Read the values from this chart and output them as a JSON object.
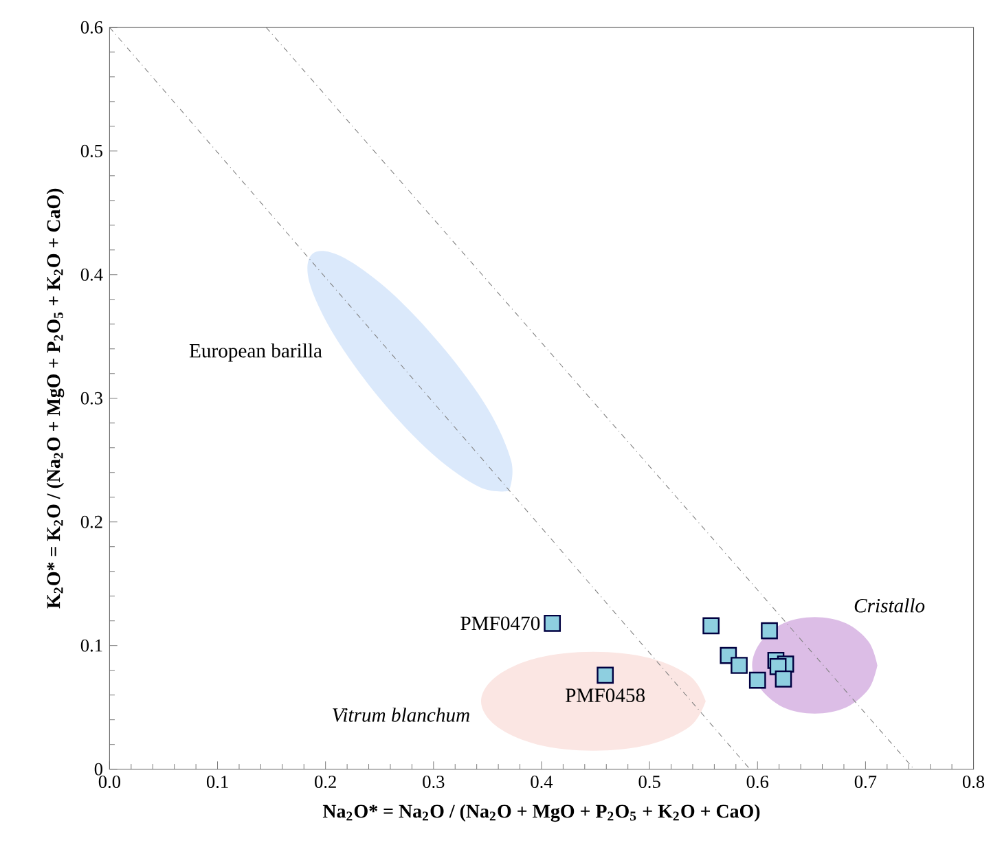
{
  "chart_data": {
    "type": "scatter",
    "xlabel": "**Na$_{2}$O* = Na$_{2}$O / (Na$_{2}$O + MgO + P$_{2}$O$_{5}$ + K$_{2}$O + CaO)**",
    "ylabel": "**K$_{2}$O* = K$_{2}$O / (Na$_{2}$O + MgO + P$_{2}$O$_{5}$ + K$_{2}$O + CaO)**",
    "xlim": [
      0,
      0.8
    ],
    "ylim": [
      0,
      0.6
    ],
    "xticks": [
      {
        "value": 0,
        "label": "0.0"
      },
      0.1,
      0.2,
      0.3,
      0.4,
      0.5,
      0.6,
      0.7,
      0.8
    ],
    "yticks": [
      0,
      0.1,
      0.2,
      0.3,
      0.4,
      0.5,
      0.6
    ],
    "grid": false,
    "series": [
      {
        "type": "area",
        "name": "European barilla",
        "color": "#dbe9fb",
        "x": [
          0.37,
          0.372,
          0.35,
          0.308,
          0.259,
          0.214,
          0.188,
          0.185,
          0.208,
          0.25,
          0.299,
          0.343
        ],
        "values": [
          0.225,
          0.249,
          0.292,
          0.342,
          0.387,
          0.415,
          0.417,
          0.394,
          0.351,
          0.3,
          0.255,
          0.228
        ]
      },
      {
        "type": "area",
        "name": "Vitrum blanchum",
        "color": "#fbe6e3",
        "x": [
          0.552,
          0.538,
          0.5,
          0.448,
          0.396,
          0.358,
          0.344,
          0.358,
          0.396,
          0.448,
          0.5,
          0.538
        ],
        "values": [
          0.055,
          0.075,
          0.09,
          0.095,
          0.09,
          0.075,
          0.055,
          0.035,
          0.02,
          0.015,
          0.02,
          0.035
        ]
      },
      {
        "type": "area",
        "name": "Cristallo",
        "color": "#dcbde6",
        "x": [
          0.711,
          0.703,
          0.682,
          0.653,
          0.624,
          0.603,
          0.595,
          0.603,
          0.624,
          0.653,
          0.682,
          0.703
        ],
        "values": [
          0.084,
          0.103,
          0.118,
          0.123,
          0.118,
          0.103,
          0.084,
          0.065,
          0.05,
          0.045,
          0.05,
          0.065
        ]
      },
      {
        "type": "line",
        "color": "#808080",
        "line_style": "dashed",
        "x": [
          0,
          0.593
        ],
        "values": [
          0.6,
          0
        ]
      },
      {
        "type": "line",
        "color": "#808080",
        "line_style": "dashed",
        "x": [
          0.145,
          0.745
        ],
        "values": [
          0.6,
          0
        ]
      },
      {
        "marker": "square",
        "color": "#8ecfe0",
        "x": [
          0.41,
          0.459,
          0.557,
          0.611,
          0.573,
          0.583,
          0.6,
          0.617,
          0.626,
          0.619,
          0.624
        ],
        "values": [
          0.118,
          0.076,
          0.116,
          0.112,
          0.092,
          0.084,
          0.072,
          0.088,
          0.085,
          0.083,
          0.073
        ]
      }
    ],
    "annotations": [
      {
        "text": "PMF0470",
        "x": 0.41,
        "y": 0.118
      },
      {
        "text": "PMF0458",
        "x": 0.459,
        "y": 0.076
      }
    ]
  }
}
